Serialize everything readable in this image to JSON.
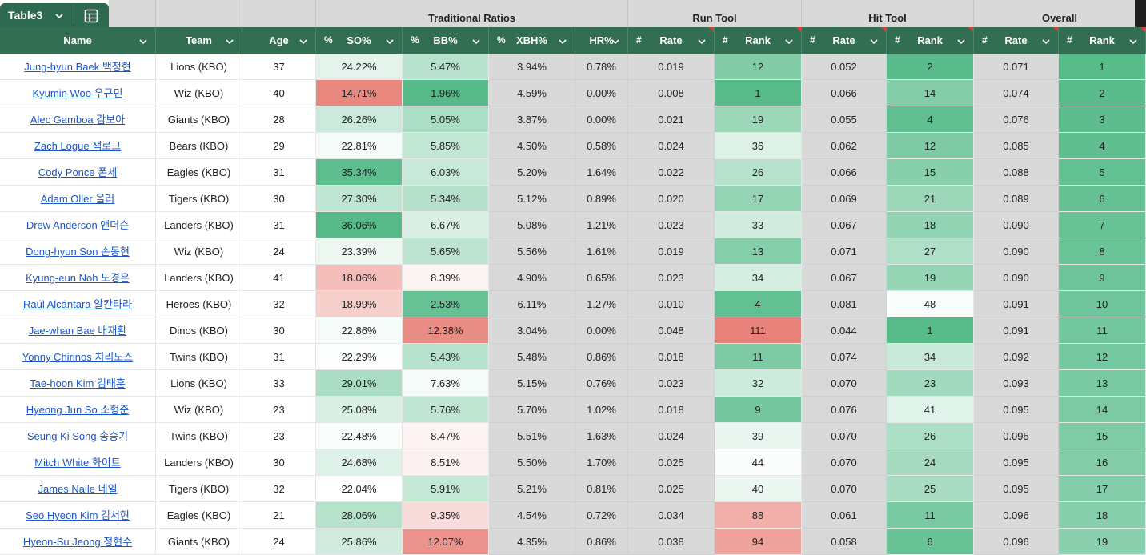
{
  "table_tab": {
    "name": "Table3",
    "chevron_icon": "chevron-down-icon",
    "view_icon": "table-grid-icon"
  },
  "groups": {
    "traditional": "Traditional Ratios",
    "run_tool": "Run Tool",
    "hit_tool": "Hit Tool",
    "overall": "Overall"
  },
  "headers": {
    "name": "Name",
    "team": "Team",
    "age": "Age",
    "so": "SO%",
    "bb": "BB%",
    "xbh": "XBH%",
    "hr": "HR%",
    "run_rate": "Rate",
    "run_rank": "Rank",
    "hit_rate": "Rate",
    "hit_rank": "Rank",
    "ov_rate": "Rate",
    "ov_rank": "Rank",
    "pct_prefix": "%",
    "num_prefix": "#"
  },
  "colors": {
    "header_bg": "#326f52",
    "tab_bg": "#2d6a4f",
    "link": "#1a56c9",
    "good": "#57bb8a",
    "bad": "#e67c73"
  },
  "rows": [
    {
      "name": "Jung-hyun Baek 백정현",
      "team": "Lions (KBO)",
      "age": "37",
      "so": "24.22%",
      "bb": "5.47%",
      "xbh": "3.94%",
      "hr": "0.78%",
      "run_rate": "0.019",
      "run_rank": "12",
      "hit_rate": "0.052",
      "hit_rank": "2",
      "ov_rate": "0.071",
      "ov_rank": "1"
    },
    {
      "name": "Kyumin Woo 우규민",
      "team": "Wiz (KBO)",
      "age": "40",
      "so": "14.71%",
      "bb": "1.96%",
      "xbh": "4.59%",
      "hr": "0.00%",
      "run_rate": "0.008",
      "run_rank": "1",
      "hit_rate": "0.066",
      "hit_rank": "14",
      "ov_rate": "0.074",
      "ov_rank": "2"
    },
    {
      "name": "Alec Gamboa 감보아",
      "team": "Giants (KBO)",
      "age": "28",
      "so": "26.26%",
      "bb": "5.05%",
      "xbh": "3.87%",
      "hr": "0.00%",
      "run_rate": "0.021",
      "run_rank": "19",
      "hit_rate": "0.055",
      "hit_rank": "4",
      "ov_rate": "0.076",
      "ov_rank": "3"
    },
    {
      "name": "Zach Logue 잭로그",
      "team": "Bears (KBO)",
      "age": "29",
      "so": "22.81%",
      "bb": "5.85%",
      "xbh": "4.50%",
      "hr": "0.58%",
      "run_rate": "0.024",
      "run_rank": "36",
      "hit_rate": "0.062",
      "hit_rank": "12",
      "ov_rate": "0.085",
      "ov_rank": "4"
    },
    {
      "name": "Cody Ponce 폰세",
      "team": "Eagles (KBO)",
      "age": "31",
      "so": "35.34%",
      "bb": "6.03%",
      "xbh": "5.20%",
      "hr": "1.64%",
      "run_rate": "0.022",
      "run_rank": "26",
      "hit_rate": "0.066",
      "hit_rank": "15",
      "ov_rate": "0.088",
      "ov_rank": "5"
    },
    {
      "name": "Adam Oller 올러",
      "team": "Tigers (KBO)",
      "age": "30",
      "so": "27.30%",
      "bb": "5.34%",
      "xbh": "5.12%",
      "hr": "0.89%",
      "run_rate": "0.020",
      "run_rank": "17",
      "hit_rate": "0.069",
      "hit_rank": "21",
      "ov_rate": "0.089",
      "ov_rank": "6"
    },
    {
      "name": "Drew Anderson 앤더슨",
      "team": "Landers (KBO)",
      "age": "31",
      "so": "36.06%",
      "bb": "6.67%",
      "xbh": "5.08%",
      "hr": "1.21%",
      "run_rate": "0.023",
      "run_rank": "33",
      "hit_rate": "0.067",
      "hit_rank": "18",
      "ov_rate": "0.090",
      "ov_rank": "7"
    },
    {
      "name": "Dong-hyun Son 손동현",
      "team": "Wiz (KBO)",
      "age": "24",
      "so": "23.39%",
      "bb": "5.65%",
      "xbh": "5.56%",
      "hr": "1.61%",
      "run_rate": "0.019",
      "run_rank": "13",
      "hit_rate": "0.071",
      "hit_rank": "27",
      "ov_rate": "0.090",
      "ov_rank": "8"
    },
    {
      "name": "Kyung-eun Noh 노경은",
      "team": "Landers (KBO)",
      "age": "41",
      "so": "18.06%",
      "bb": "8.39%",
      "xbh": "4.90%",
      "hr": "0.65%",
      "run_rate": "0.023",
      "run_rank": "34",
      "hit_rate": "0.067",
      "hit_rank": "19",
      "ov_rate": "0.090",
      "ov_rank": "9"
    },
    {
      "name": "Raúl Alcántara 알칸타라",
      "team": "Heroes (KBO)",
      "age": "32",
      "so": "18.99%",
      "bb": "2.53%",
      "xbh": "6.11%",
      "hr": "1.27%",
      "run_rate": "0.010",
      "run_rank": "4",
      "hit_rate": "0.081",
      "hit_rank": "48",
      "ov_rate": "0.091",
      "ov_rank": "10"
    },
    {
      "name": "Jae-whan Bae 배재환",
      "team": "Dinos (KBO)",
      "age": "30",
      "so": "22.86%",
      "bb": "12.38%",
      "xbh": "3.04%",
      "hr": "0.00%",
      "run_rate": "0.048",
      "run_rank": "111",
      "hit_rate": "0.044",
      "hit_rank": "1",
      "ov_rate": "0.091",
      "ov_rank": "11"
    },
    {
      "name": "Yonny Chirinos 치리노스",
      "team": "Twins (KBO)",
      "age": "31",
      "so": "22.29%",
      "bb": "5.43%",
      "xbh": "5.48%",
      "hr": "0.86%",
      "run_rate": "0.018",
      "run_rank": "11",
      "hit_rate": "0.074",
      "hit_rank": "34",
      "ov_rate": "0.092",
      "ov_rank": "12"
    },
    {
      "name": "Tae-hoon Kim 김태훈",
      "team": "Lions (KBO)",
      "age": "33",
      "so": "29.01%",
      "bb": "7.63%",
      "xbh": "5.15%",
      "hr": "0.76%",
      "run_rate": "0.023",
      "run_rank": "32",
      "hit_rate": "0.070",
      "hit_rank": "23",
      "ov_rate": "0.093",
      "ov_rank": "13"
    },
    {
      "name": "Hyeong Jun So 소형준",
      "team": "Wiz (KBO)",
      "age": "23",
      "so": "25.08%",
      "bb": "5.76%",
      "xbh": "5.70%",
      "hr": "1.02%",
      "run_rate": "0.018",
      "run_rank": "9",
      "hit_rate": "0.076",
      "hit_rank": "41",
      "ov_rate": "0.095",
      "ov_rank": "14"
    },
    {
      "name": "Seung Ki Song 송승기",
      "team": "Twins (KBO)",
      "age": "23",
      "so": "22.48%",
      "bb": "8.47%",
      "xbh": "5.51%",
      "hr": "1.63%",
      "run_rate": "0.024",
      "run_rank": "39",
      "hit_rate": "0.070",
      "hit_rank": "26",
      "ov_rate": "0.095",
      "ov_rank": "15"
    },
    {
      "name": "Mitch White 화이트",
      "team": "Landers (KBO)",
      "age": "30",
      "so": "24.68%",
      "bb": "8.51%",
      "xbh": "5.50%",
      "hr": "1.70%",
      "run_rate": "0.025",
      "run_rank": "44",
      "hit_rate": "0.070",
      "hit_rank": "24",
      "ov_rate": "0.095",
      "ov_rank": "16"
    },
    {
      "name": "James Naile 네일",
      "team": "Tigers (KBO)",
      "age": "32",
      "so": "22.04%",
      "bb": "5.91%",
      "xbh": "5.21%",
      "hr": "0.81%",
      "run_rate": "0.025",
      "run_rank": "40",
      "hit_rate": "0.070",
      "hit_rank": "25",
      "ov_rate": "0.095",
      "ov_rank": "17"
    },
    {
      "name": "Seo Hyeon Kim 김서현",
      "team": "Eagles (KBO)",
      "age": "21",
      "so": "28.06%",
      "bb": "9.35%",
      "xbh": "4.54%",
      "hr": "0.72%",
      "run_rate": "0.034",
      "run_rank": "88",
      "hit_rate": "0.061",
      "hit_rank": "11",
      "ov_rate": "0.096",
      "ov_rank": "18"
    },
    {
      "name": "Hyeon-Su Jeong 정현수",
      "team": "Giants (KBO)",
      "age": "24",
      "so": "25.86%",
      "bb": "12.07%",
      "xbh": "4.35%",
      "hr": "0.86%",
      "run_rate": "0.038",
      "run_rank": "94",
      "hit_rate": "0.058",
      "hit_rank": "6",
      "ov_rate": "0.096",
      "ov_rank": "19"
    }
  ]
}
